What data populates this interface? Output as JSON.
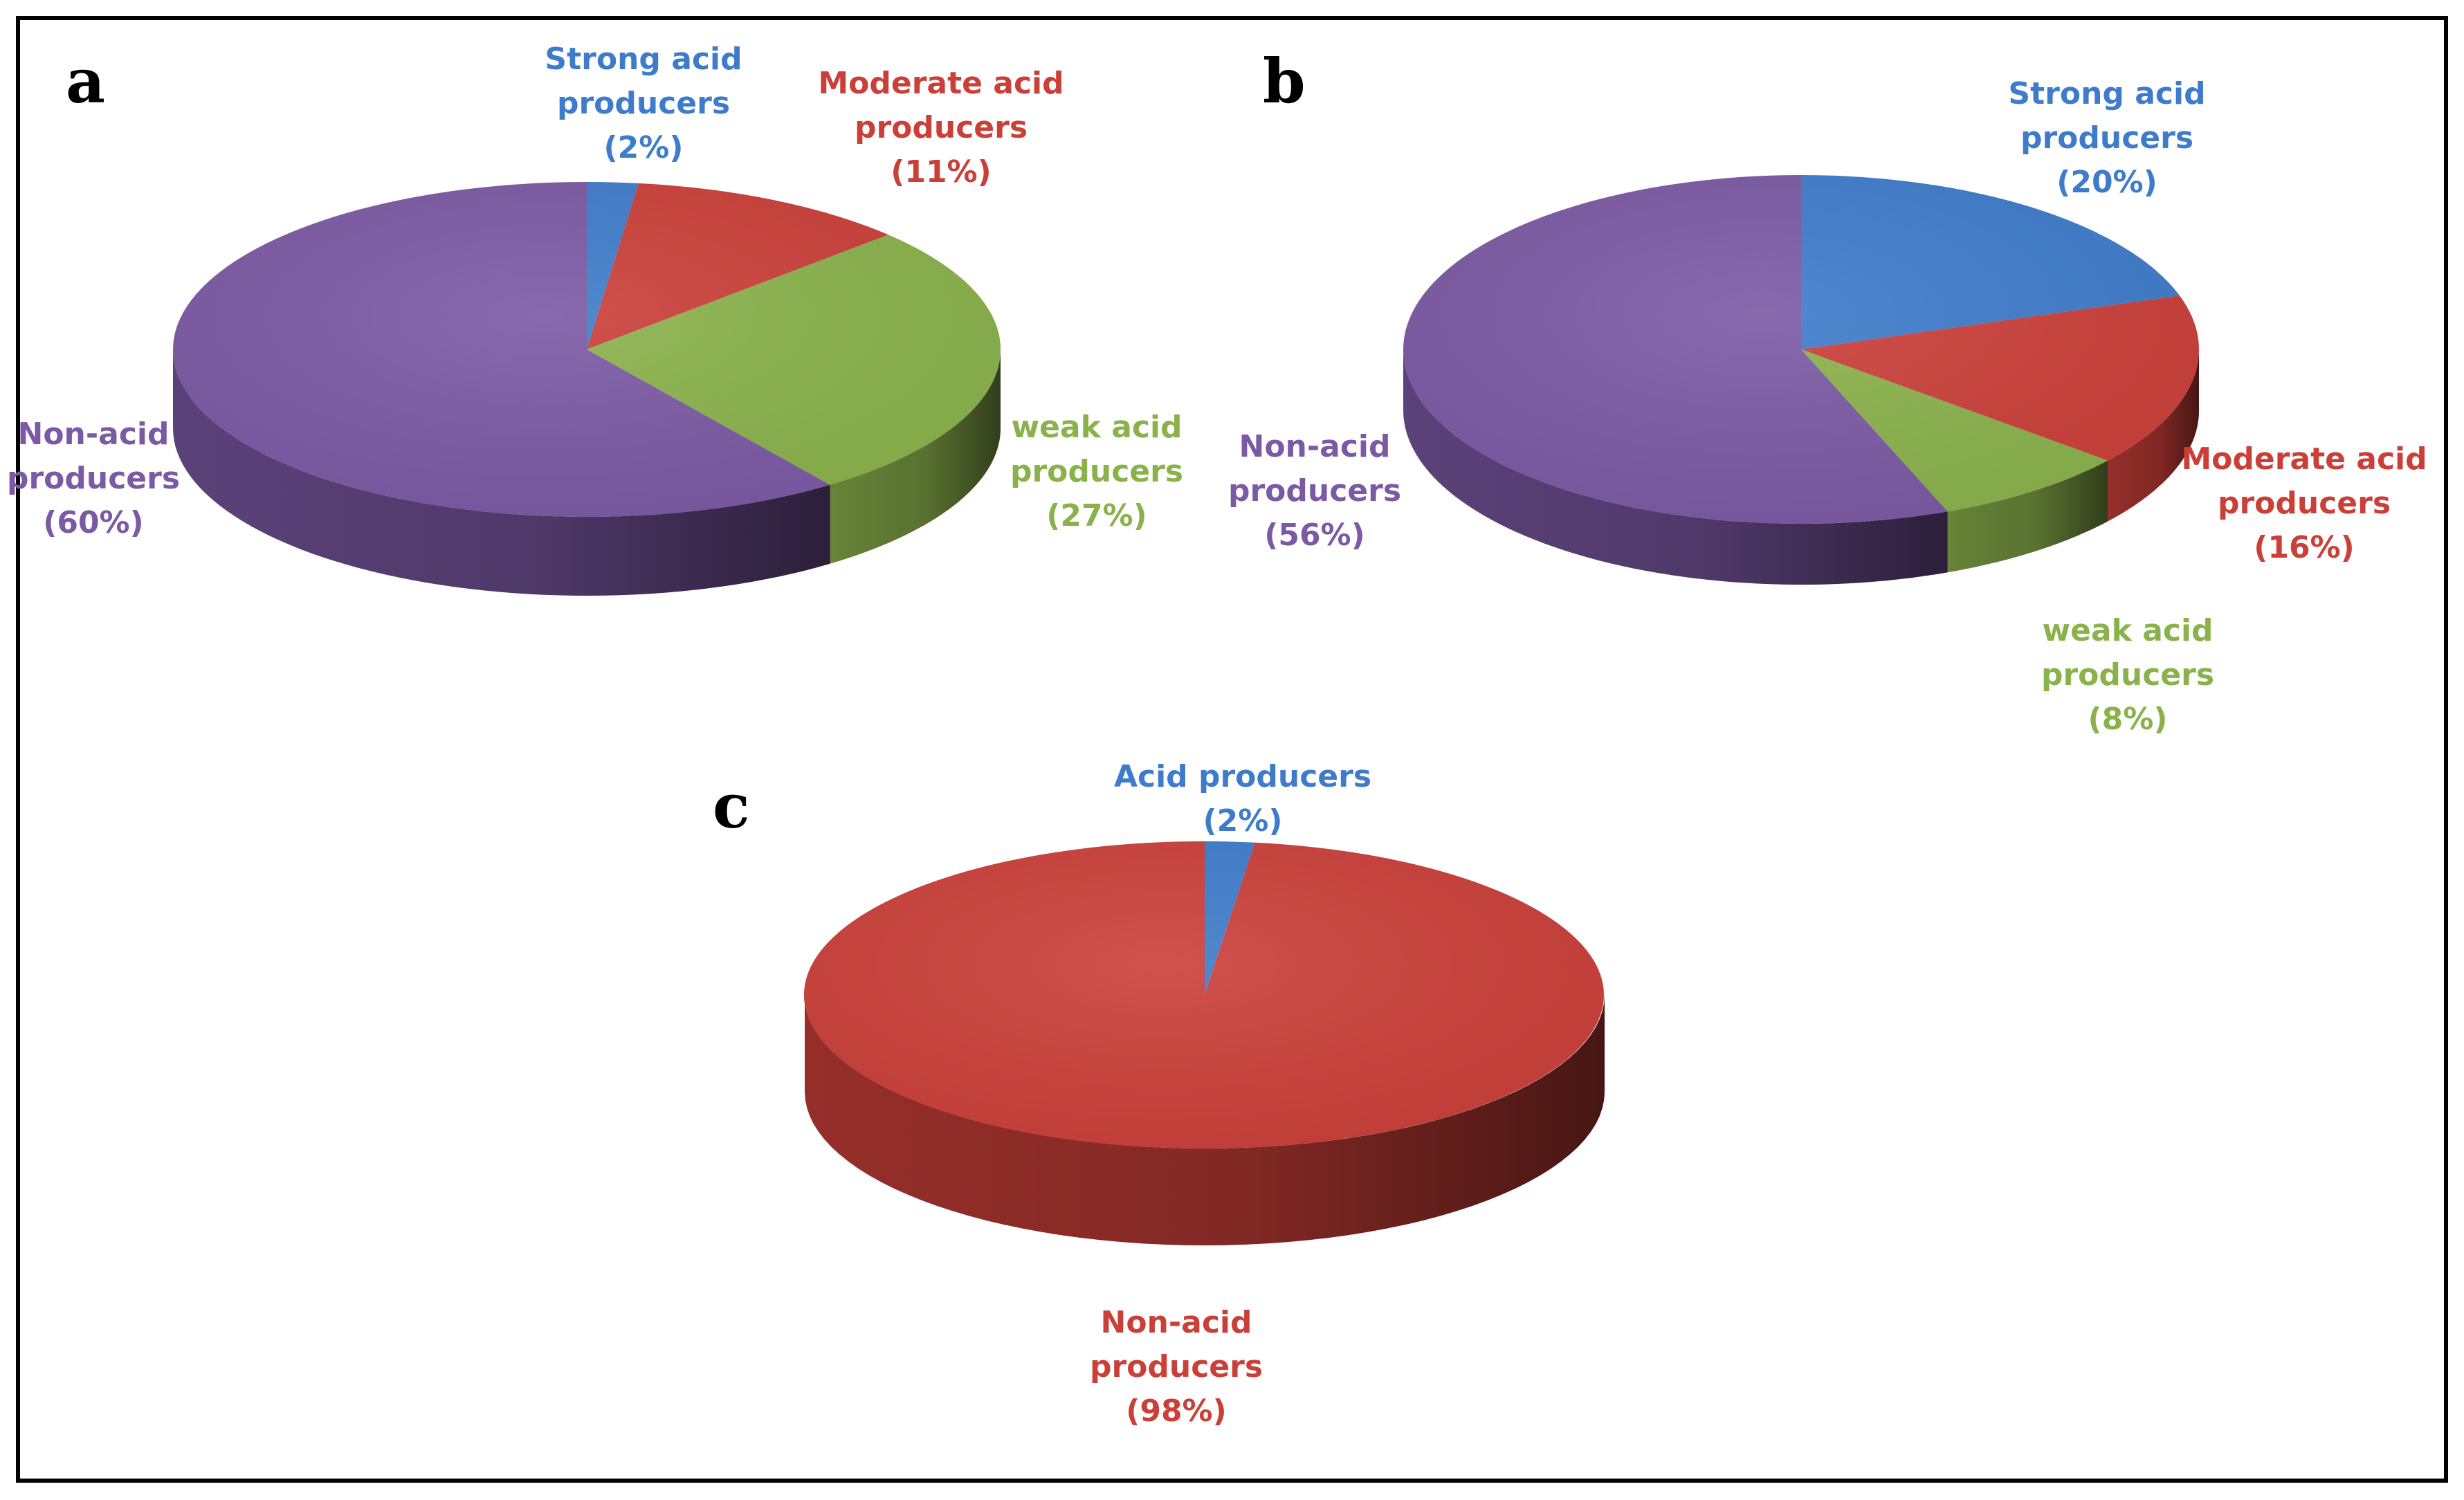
{
  "chart_data": [
    {
      "type": "pie",
      "panel_label": "a",
      "slices": [
        {
          "label_lines": [
            "Strong acid",
            "producers",
            "(2%)"
          ],
          "value": 2,
          "color": "#3E7CCB"
        },
        {
          "label_lines": [
            "Moderate acid",
            "producers",
            "(11%)"
          ],
          "value": 11,
          "color": "#CB3F39"
        },
        {
          "label_lines": [
            "weak acid",
            "producers",
            "(27%)"
          ],
          "value": 27,
          "color": "#8AB24B"
        },
        {
          "label_lines": [
            "Non-acid",
            "producers",
            "(60%)"
          ],
          "value": 60,
          "color": "#7B59A4"
        }
      ]
    },
    {
      "type": "pie",
      "panel_label": "b",
      "slices": [
        {
          "label_lines": [
            "Strong acid",
            "producers",
            "(20%)"
          ],
          "value": 20,
          "color": "#3E7CCB"
        },
        {
          "label_lines": [
            "Moderate acid",
            "producers",
            "(16%)"
          ],
          "value": 16,
          "color": "#CB3F39"
        },
        {
          "label_lines": [
            "weak acid",
            "producers",
            "(8%)"
          ],
          "value": 8,
          "color": "#8AB24B"
        },
        {
          "label_lines": [
            "Non-acid",
            "producers",
            "(56%)"
          ],
          "value": 56,
          "color": "#7B59A4"
        }
      ]
    },
    {
      "type": "pie",
      "panel_label": "c",
      "slices": [
        {
          "label_lines": [
            "Acid producers",
            "(2%)"
          ],
          "value": 2,
          "color": "#3E7CCB"
        },
        {
          "label_lines": [
            "Non-acid",
            "producers",
            "(98%)"
          ],
          "value": 98,
          "color": "#CB3F39"
        }
      ]
    }
  ]
}
